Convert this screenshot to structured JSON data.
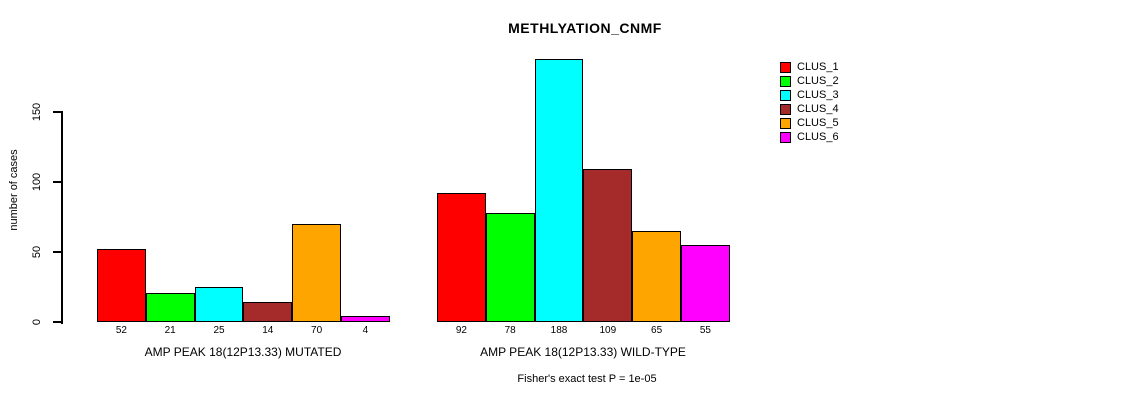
{
  "chart_data": {
    "type": "bar",
    "title": "METHLYATION_CNMF",
    "ylabel": "number of cases",
    "yticks": [
      0,
      50,
      100,
      150
    ],
    "ylim": [
      0,
      188
    ],
    "grid": false,
    "legend_position": "right",
    "legend": [
      "CLUS_1",
      "CLUS_2",
      "CLUS_3",
      "CLUS_4",
      "CLUS_5",
      "CLUS_6"
    ],
    "colors": [
      "#FF0000",
      "#00FF00",
      "#00FFFF",
      "#A52A2A",
      "#FFA500",
      "#FF00FF"
    ],
    "groups": [
      {
        "label": "AMP PEAK 18(12P13.33) MUTATED",
        "values": [
          52,
          21,
          25,
          14,
          70,
          4
        ]
      },
      {
        "label": "AMP PEAK 18(12P13.33) WILD-TYPE",
        "values": [
          92,
          78,
          188,
          109,
          65,
          55
        ]
      }
    ],
    "annotation": "Fisher's exact test P = 1e-05"
  }
}
